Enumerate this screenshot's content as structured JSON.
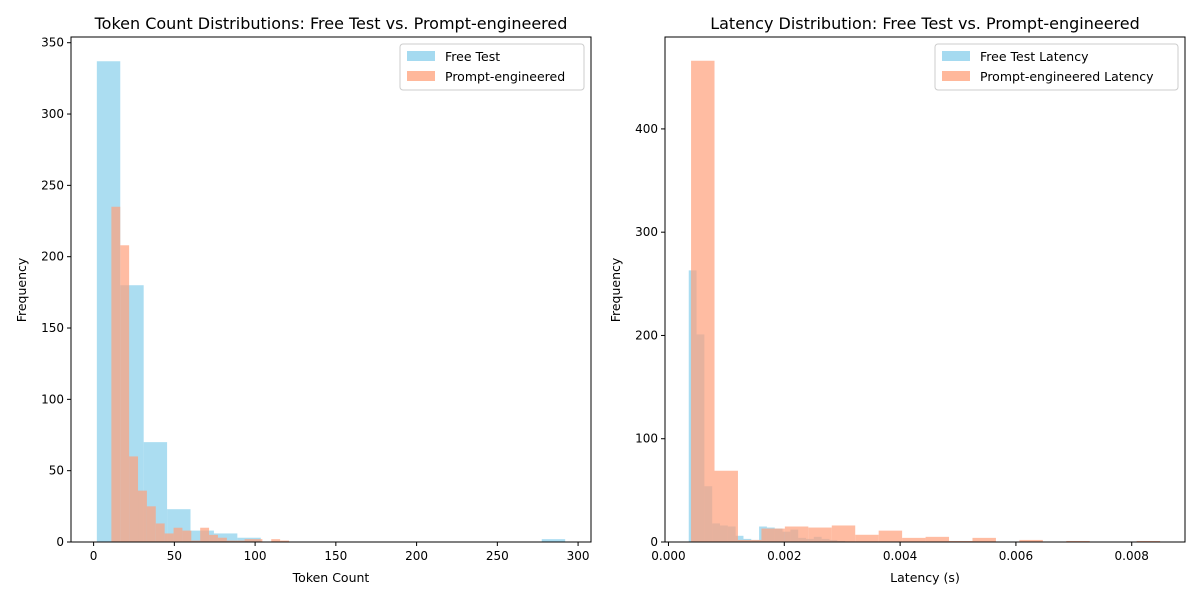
{
  "colors": {
    "free": "#87CEEB",
    "prompt": "#FFA07A"
  },
  "chart_data": [
    {
      "type": "histogram",
      "title": "Token Count Distributions: Free Test vs. Prompt-engineered",
      "xlabel": "Token Count",
      "ylabel": "Frequency",
      "xlim": [
        -14,
        308
      ],
      "ylim": [
        0,
        354
      ],
      "xticks": [
        0,
        50,
        100,
        150,
        200,
        250,
        300
      ],
      "yticks": [
        0,
        50,
        100,
        150,
        200,
        250,
        300,
        350
      ],
      "legend": {
        "position": "top-right"
      },
      "series": [
        {
          "name": "Free Test",
          "color": "#87CEEB",
          "bins": [
            {
              "x0": 2,
              "x1": 16.5,
              "count": 337
            },
            {
              "x0": 16.5,
              "x1": 31,
              "count": 180
            },
            {
              "x0": 31,
              "x1": 45.5,
              "count": 70
            },
            {
              "x0": 45.5,
              "x1": 60,
              "count": 23
            },
            {
              "x0": 60,
              "x1": 74.5,
              "count": 8
            },
            {
              "x0": 74.5,
              "x1": 89,
              "count": 6
            },
            {
              "x0": 89,
              "x1": 103.5,
              "count": 3
            },
            {
              "x0": 103.5,
              "x1": 118,
              "count": 0
            },
            {
              "x0": 118,
              "x1": 132.5,
              "count": 0
            },
            {
              "x0": 132.5,
              "x1": 147,
              "count": 0
            },
            {
              "x0": 147,
              "x1": 161.5,
              "count": 0
            },
            {
              "x0": 161.5,
              "x1": 176,
              "count": 0
            },
            {
              "x0": 176,
              "x1": 190.5,
              "count": 0
            },
            {
              "x0": 190.5,
              "x1": 205,
              "count": 0
            },
            {
              "x0": 205,
              "x1": 219.5,
              "count": 0
            },
            {
              "x0": 219.5,
              "x1": 234,
              "count": 0
            },
            {
              "x0": 234,
              "x1": 248.5,
              "count": 0
            },
            {
              "x0": 248.5,
              "x1": 263,
              "count": 0
            },
            {
              "x0": 263,
              "x1": 277.5,
              "count": 0
            },
            {
              "x0": 277.5,
              "x1": 292,
              "count": 2
            }
          ]
        },
        {
          "name": "Prompt-engineered",
          "color": "#FFA07A",
          "bins": [
            {
              "x0": 11,
              "x1": 16.5,
              "count": 235
            },
            {
              "x0": 16.5,
              "x1": 22,
              "count": 208
            },
            {
              "x0": 22,
              "x1": 27.5,
              "count": 60
            },
            {
              "x0": 27.5,
              "x1": 33,
              "count": 36
            },
            {
              "x0": 33,
              "x1": 38.5,
              "count": 25
            },
            {
              "x0": 38.5,
              "x1": 44,
              "count": 13
            },
            {
              "x0": 44,
              "x1": 49.5,
              "count": 6
            },
            {
              "x0": 49.5,
              "x1": 55,
              "count": 10
            },
            {
              "x0": 55,
              "x1": 60.5,
              "count": 8
            },
            {
              "x0": 60.5,
              "x1": 66,
              "count": 1
            },
            {
              "x0": 66,
              "x1": 71.5,
              "count": 10
            },
            {
              "x0": 71.5,
              "x1": 77,
              "count": 5
            },
            {
              "x0": 77,
              "x1": 82.5,
              "count": 3
            },
            {
              "x0": 82.5,
              "x1": 88,
              "count": 1
            },
            {
              "x0": 88,
              "x1": 93.5,
              "count": 1
            },
            {
              "x0": 93.5,
              "x1": 99,
              "count": 2
            },
            {
              "x0": 99,
              "x1": 104.5,
              "count": 2
            },
            {
              "x0": 104.5,
              "x1": 110,
              "count": 0
            },
            {
              "x0": 110,
              "x1": 115.5,
              "count": 2
            },
            {
              "x0": 115.5,
              "x1": 121,
              "count": 1
            }
          ]
        }
      ]
    },
    {
      "type": "histogram",
      "title": "Latency Distribution: Free Test vs. Prompt-engineered",
      "xlabel": "Latency (s)",
      "ylabel": "Frequency",
      "xlim": [
        -6e-05,
        0.00892
      ],
      "ylim": [
        0,
        489
      ],
      "xticks": [
        0,
        0.002,
        0.004,
        0.006,
        0.008
      ],
      "xtick_labels": [
        "0.000",
        "0.002",
        "0.004",
        "0.006",
        "0.008"
      ],
      "yticks": [
        0,
        100,
        200,
        300,
        400
      ],
      "legend": {
        "position": "top-right"
      },
      "series": [
        {
          "name": "Free Test Latency",
          "color": "#87CEEB",
          "bins": [
            {
              "x0": 0.00035,
              "x1": 0.000485,
              "count": 263
            },
            {
              "x0": 0.000485,
              "x1": 0.00062,
              "count": 201
            },
            {
              "x0": 0.00062,
              "x1": 0.000755,
              "count": 54
            },
            {
              "x0": 0.000755,
              "x1": 0.00089,
              "count": 18
            },
            {
              "x0": 0.00089,
              "x1": 0.001025,
              "count": 16
            },
            {
              "x0": 0.001025,
              "x1": 0.00116,
              "count": 15
            },
            {
              "x0": 0.00116,
              "x1": 0.001295,
              "count": 6
            },
            {
              "x0": 0.001295,
              "x1": 0.00143,
              "count": 3
            },
            {
              "x0": 0.00143,
              "x1": 0.001565,
              "count": 2
            },
            {
              "x0": 0.001565,
              "x1": 0.0017,
              "count": 15
            },
            {
              "x0": 0.0017,
              "x1": 0.001835,
              "count": 14
            },
            {
              "x0": 0.001835,
              "x1": 0.00197,
              "count": 13
            },
            {
              "x0": 0.00197,
              "x1": 0.002105,
              "count": 10
            },
            {
              "x0": 0.002105,
              "x1": 0.00224,
              "count": 12
            },
            {
              "x0": 0.00224,
              "x1": 0.002375,
              "count": 4
            },
            {
              "x0": 0.002375,
              "x1": 0.00251,
              "count": 3
            },
            {
              "x0": 0.00251,
              "x1": 0.002645,
              "count": 5
            },
            {
              "x0": 0.002645,
              "x1": 0.00278,
              "count": 3
            },
            {
              "x0": 0.00278,
              "x1": 0.002915,
              "count": 2
            },
            {
              "x0": 0.002915,
              "x1": 0.00305,
              "count": 1
            }
          ]
        },
        {
          "name": "Prompt-engineered Latency",
          "color": "#FFA07A",
          "bins": [
            {
              "x0": 0.00039,
              "x1": 0.000795,
              "count": 466
            },
            {
              "x0": 0.000795,
              "x1": 0.0012,
              "count": 69
            },
            {
              "x0": 0.0012,
              "x1": 0.001605,
              "count": 2
            },
            {
              "x0": 0.001605,
              "x1": 0.00201,
              "count": 13
            },
            {
              "x0": 0.00201,
              "x1": 0.002415,
              "count": 15
            },
            {
              "x0": 0.002415,
              "x1": 0.00282,
              "count": 14
            },
            {
              "x0": 0.00282,
              "x1": 0.003225,
              "count": 16
            },
            {
              "x0": 0.003225,
              "x1": 0.00363,
              "count": 7
            },
            {
              "x0": 0.00363,
              "x1": 0.004035,
              "count": 11
            },
            {
              "x0": 0.004035,
              "x1": 0.00444,
              "count": 4
            },
            {
              "x0": 0.00444,
              "x1": 0.004845,
              "count": 5
            },
            {
              "x0": 0.004845,
              "x1": 0.00525,
              "count": 1
            },
            {
              "x0": 0.00525,
              "x1": 0.005655,
              "count": 4
            },
            {
              "x0": 0.005655,
              "x1": 0.00606,
              "count": 0
            },
            {
              "x0": 0.00606,
              "x1": 0.006465,
              "count": 2
            },
            {
              "x0": 0.006465,
              "x1": 0.00687,
              "count": 0
            },
            {
              "x0": 0.00687,
              "x1": 0.007275,
              "count": 1
            },
            {
              "x0": 0.007275,
              "x1": 0.00768,
              "count": 0
            },
            {
              "x0": 0.00768,
              "x1": 0.008085,
              "count": 0
            },
            {
              "x0": 0.008085,
              "x1": 0.00849,
              "count": 1
            }
          ]
        }
      ]
    }
  ]
}
